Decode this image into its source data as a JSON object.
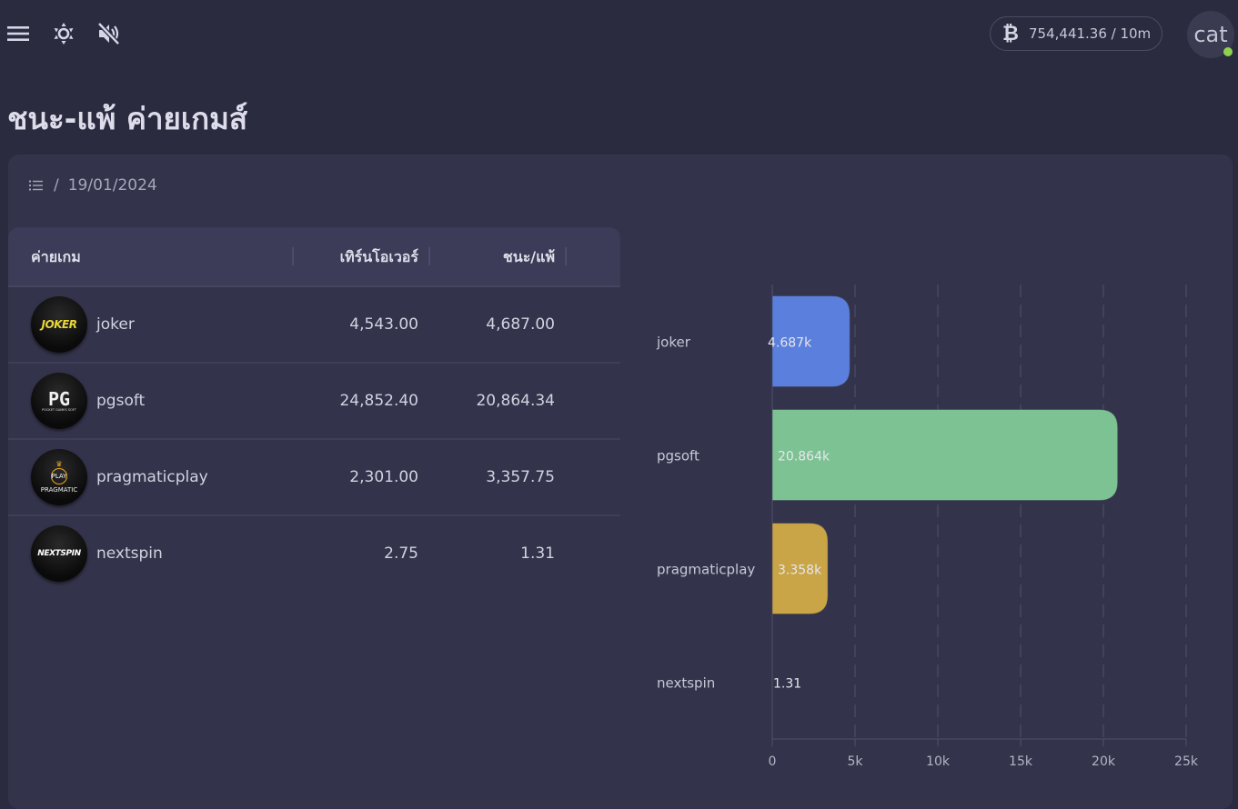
{
  "topbar": {
    "icons": [
      "menu-icon",
      "brightness-icon",
      "volume-mute-icon"
    ],
    "balance": "754,441.36 / 10m",
    "balance_icon": "bitcoin-icon",
    "avatar_text": "cat",
    "online_status_color": "#8fd14f"
  },
  "page": {
    "title": "ชนะ-แพ้ ค่ายเกมส์"
  },
  "breadcrumb": {
    "separator": "/",
    "date": "19/01/2024"
  },
  "table": {
    "headers": {
      "provider": "ค่ายเกม",
      "turnover": "เทิร์นโอเวอร์",
      "winloss": "ชนะ/แพ้"
    },
    "rows": [
      {
        "logo_text": "JOKER",
        "name": "joker",
        "turnover": "4,543.00",
        "winloss": "4,687.00"
      },
      {
        "logo_text": "PG",
        "logo_sub": "POCKET GAMES SOFT",
        "name": "pgsoft",
        "turnover": "24,852.40",
        "winloss": "20,864.34"
      },
      {
        "logo_text": "PLAY",
        "logo_sub": "PRAGMATIC",
        "name": "pragmaticplay",
        "turnover": "2,301.00",
        "winloss": "3,357.75"
      },
      {
        "logo_text": "NEXTSPIN",
        "name": "nextspin",
        "turnover": "2.75",
        "winloss": "1.31"
      }
    ]
  },
  "chart_data": {
    "type": "bar",
    "orientation": "horizontal",
    "title": "",
    "xlabel": "",
    "ylabel": "",
    "categories": [
      "joker",
      "pgsoft",
      "pragmaticplay",
      "nextspin"
    ],
    "values": [
      4687.0,
      20864.34,
      3357.75,
      1.31
    ],
    "data_labels": [
      "4.687k",
      "20.864k",
      "3.358k",
      "1.31"
    ],
    "colors": [
      "#5b7fdc",
      "#7dc292",
      "#c9a547",
      "#ee6666"
    ],
    "xlim": [
      0,
      25000
    ],
    "x_ticks": [
      0,
      5000,
      10000,
      15000,
      20000,
      25000
    ],
    "x_tick_labels": [
      "0",
      "5k",
      "10k",
      "15k",
      "20k",
      "25k"
    ],
    "grid": true,
    "legend": "none"
  }
}
